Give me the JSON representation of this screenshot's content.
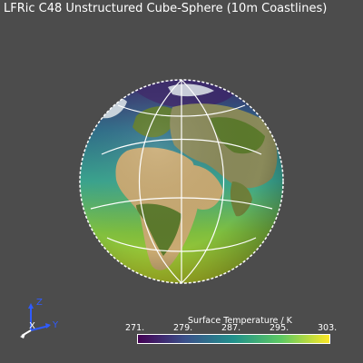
{
  "title": "LFRic C48 Unstructured Cube-Sphere (10m Coastlines)",
  "globe": {
    "icon": "globe-icon",
    "colors": {
      "ocean_cold": "#3b2a6b",
      "ocean_mid": "#3aa58f",
      "ocean_warm": "#c9cf20",
      "land_green": "#5c7a2c",
      "land_desert": "#c9aa72",
      "ice": "#e8eef2",
      "grid": "#ffffff"
    }
  },
  "axes": {
    "z_label": "Z",
    "x_label": "X",
    "y_label": "Y",
    "z_color": "#2f5bff",
    "x_color": "#ffffff",
    "y_color": "#2f5bff"
  },
  "colorbar": {
    "title": "Surface Temperature / K",
    "ticks": [
      "271.",
      "279.",
      "287.",
      "295.",
      "303."
    ],
    "min": 271,
    "max": 303,
    "colormap": "viridis",
    "colors": [
      "#440154",
      "#3b528b",
      "#21918c",
      "#5ec962",
      "#fde725"
    ]
  }
}
